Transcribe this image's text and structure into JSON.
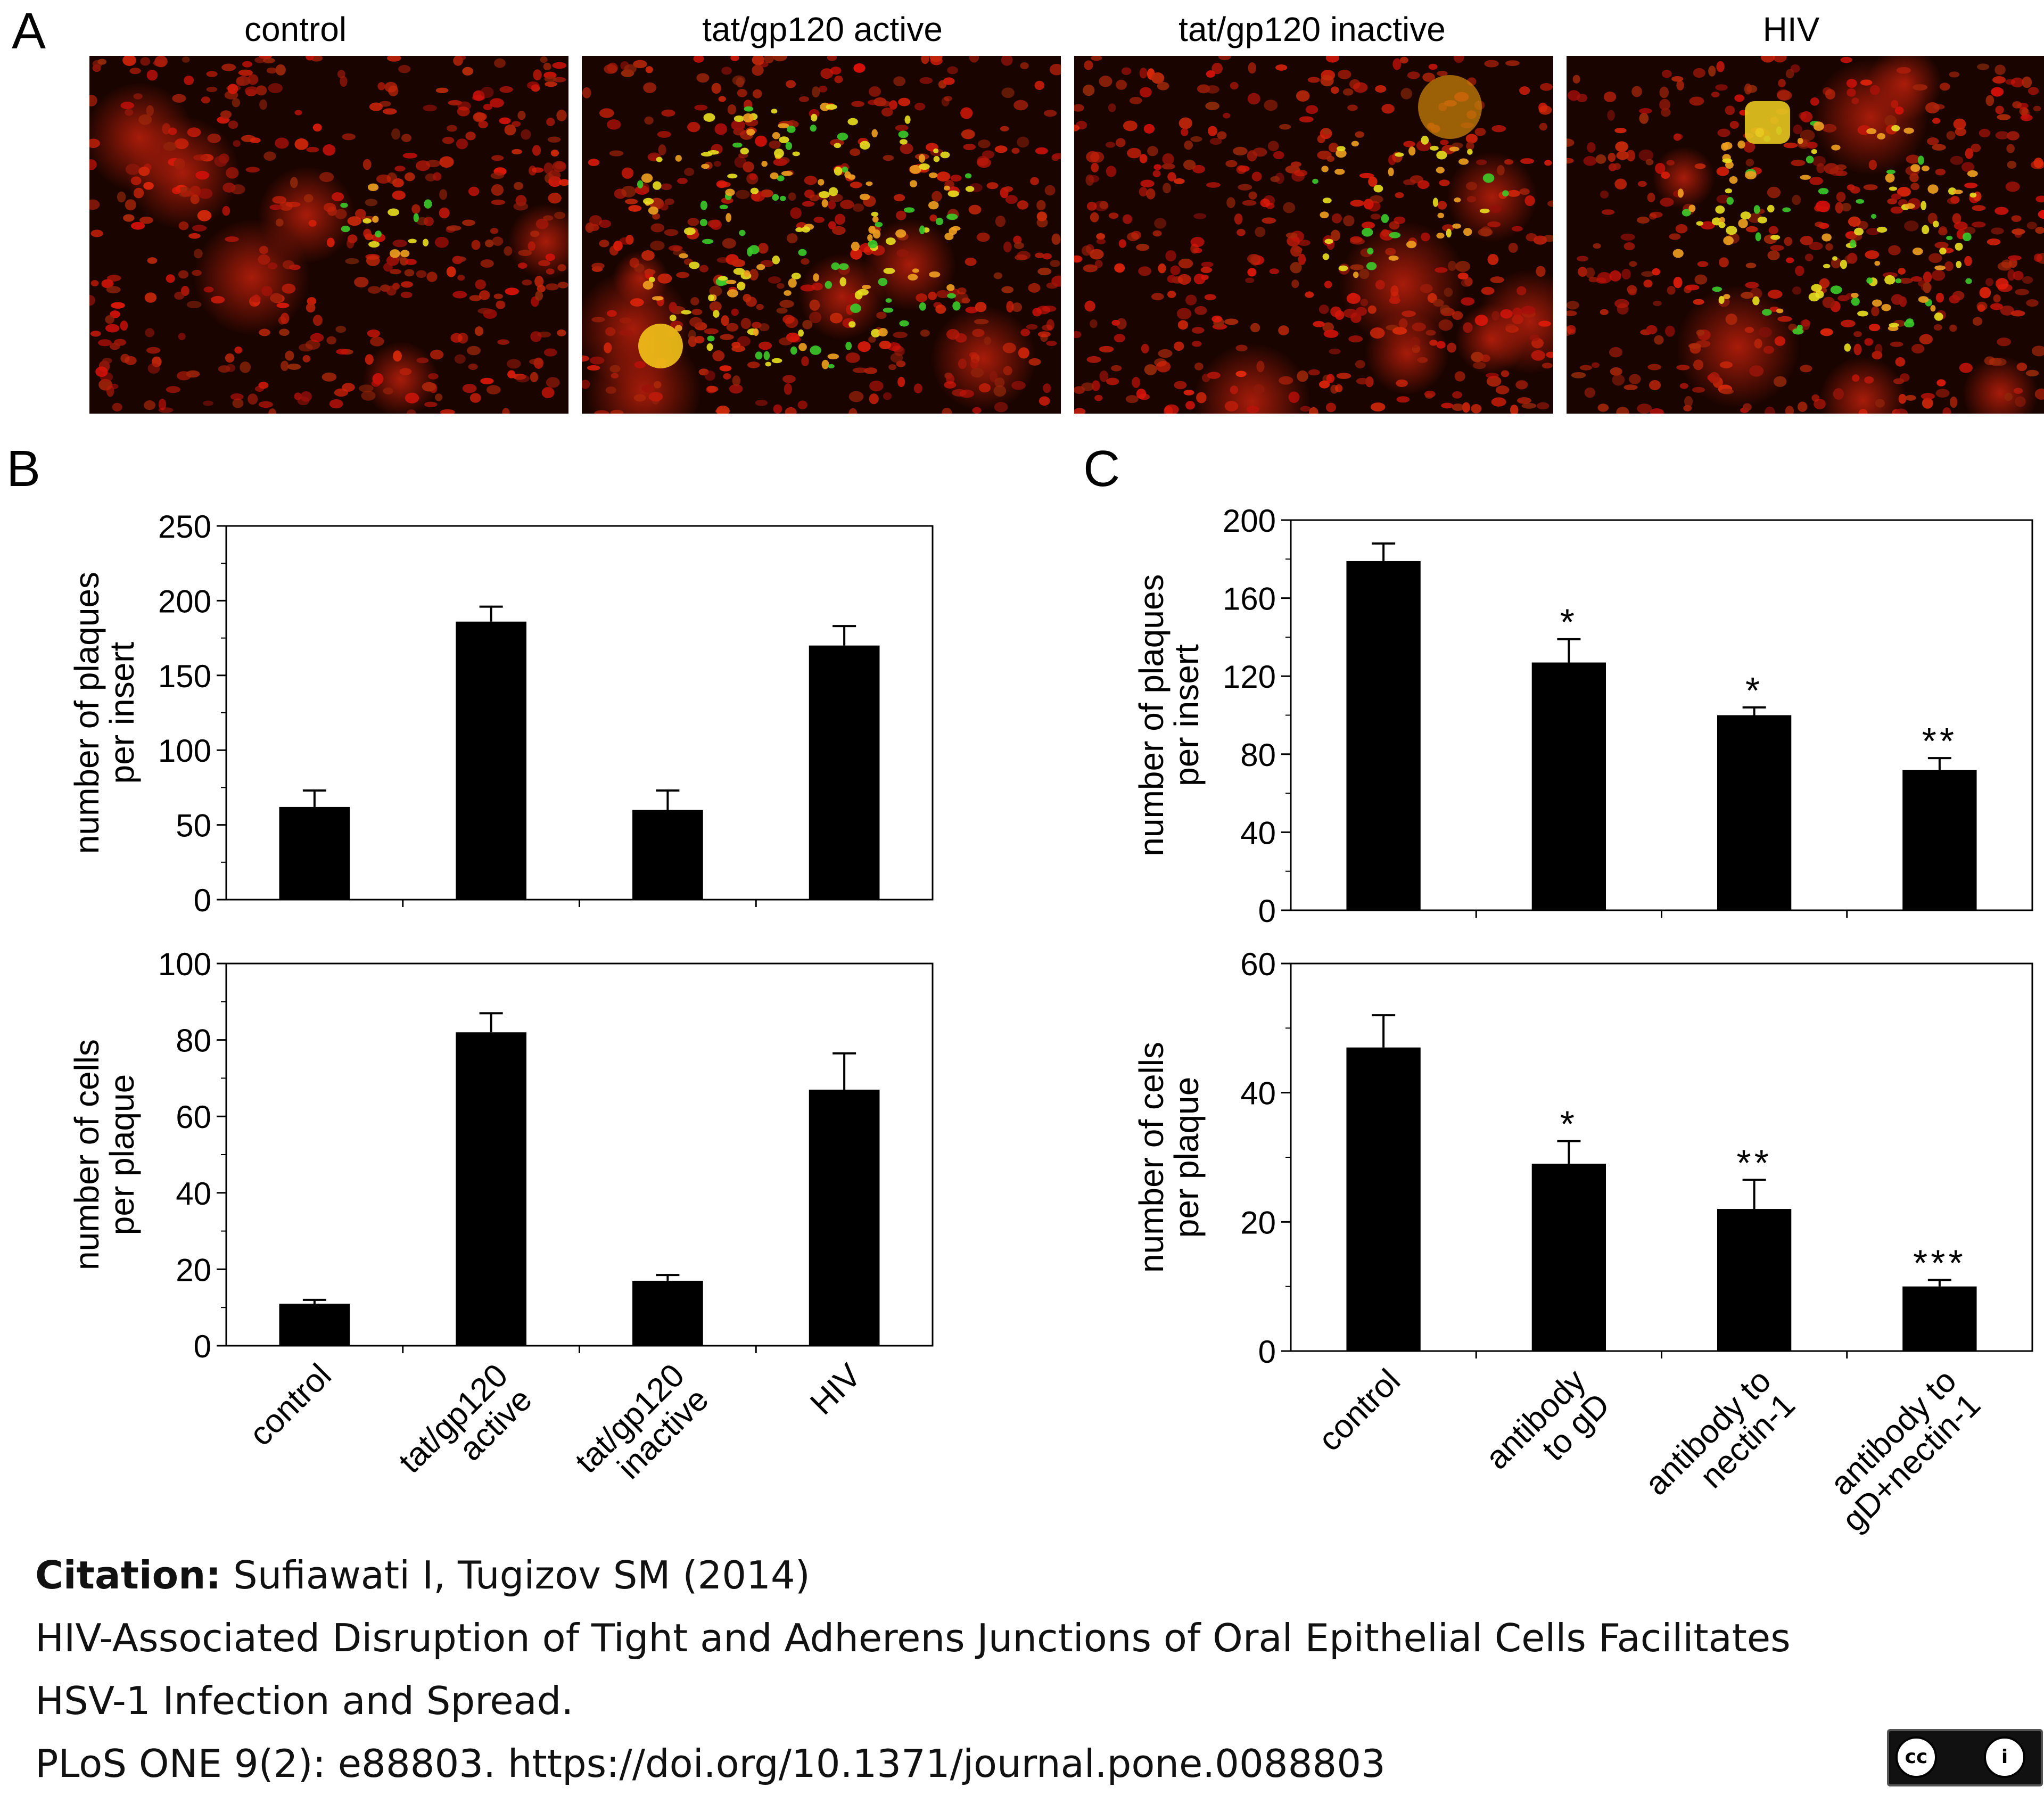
{
  "panel_a": {
    "letter": "A",
    "images": [
      {
        "title": "control"
      },
      {
        "title": "tat/gp120 active"
      },
      {
        "title": "tat/gp120 inactive"
      },
      {
        "title": "HIV"
      }
    ]
  },
  "colors": {
    "bars": "#000000",
    "micro_background": "#1a0400",
    "nuclei_red": "#b3180c",
    "infected_yellow": "#e8e020",
    "infected_green": "#3ccb2a"
  },
  "chart_data": [
    {
      "panel": "B",
      "type": "bar",
      "categories": [
        "control",
        "tat/gp120 active",
        "tat/gp120 inactive",
        "HIV"
      ],
      "values": [
        62,
        186,
        60,
        170
      ],
      "errors": [
        11,
        10,
        13,
        13
      ],
      "ylabel": [
        "number of plaques",
        "per insert"
      ],
      "ylim": [
        0,
        250
      ],
      "yticks": [
        0,
        50,
        100,
        150,
        200,
        250
      ],
      "annotations": [
        "",
        "",
        "",
        ""
      ],
      "legend": "none",
      "grid": false
    },
    {
      "panel": "B",
      "type": "bar",
      "categories": [
        "control",
        "tat/gp120 active",
        "tat/gp120 inactive",
        "HIV"
      ],
      "values": [
        11,
        82,
        17,
        67
      ],
      "errors": [
        1,
        5,
        1.5,
        9.5
      ],
      "ylabel": [
        "number of cells",
        "per plaque"
      ],
      "ylim": [
        0,
        100
      ],
      "yticks": [
        0,
        20,
        40,
        60,
        80,
        100
      ],
      "xticklabels": [
        [
          "control"
        ],
        [
          "tat/gp120",
          "active"
        ],
        [
          "tat/gp120",
          "inactive"
        ],
        [
          "HIV"
        ]
      ],
      "annotations": [
        "",
        "",
        "",
        ""
      ],
      "legend": "none",
      "grid": false
    },
    {
      "panel": "C",
      "type": "bar",
      "categories": [
        "control",
        "antibody to gD",
        "antibody to nectin-1",
        "antibody to gD+nectin-1"
      ],
      "values": [
        179,
        127,
        100,
        72
      ],
      "errors": [
        9,
        12,
        4,
        6
      ],
      "ylabel": [
        "number of plaques",
        "per insert"
      ],
      "ylim": [
        0,
        200
      ],
      "yticks": [
        0,
        40,
        80,
        120,
        160,
        200
      ],
      "annotations": [
        "",
        "*",
        "*",
        "**"
      ],
      "legend": "none",
      "grid": false
    },
    {
      "panel": "C",
      "type": "bar",
      "categories": [
        "control",
        "antibody to gD",
        "antibody to nectin-1",
        "antibody to gD+nectin-1"
      ],
      "values": [
        47,
        29,
        22,
        10
      ],
      "errors": [
        5,
        3.5,
        4.5,
        1
      ],
      "ylabel": [
        "number of cells",
        "per plaque"
      ],
      "ylim": [
        0,
        60
      ],
      "yticks": [
        0,
        20,
        40,
        60
      ],
      "xticklabels": [
        [
          "control"
        ],
        [
          "antibody",
          "to gD"
        ],
        [
          "antibody to",
          "nectin-1"
        ],
        [
          "antibody to",
          "gD+nectin-1"
        ]
      ],
      "annotations": [
        "",
        "*",
        "**",
        "***"
      ],
      "legend": "none",
      "grid": false
    }
  ],
  "panel_letters": {
    "b": "B",
    "c": "C"
  },
  "citation": {
    "label": "Citation:",
    "authors": " Sufiawati I, Tugizov SM (2014)",
    "title_line1": "HIV-Associated Disruption of Tight and Adherens Junctions of Oral Epithelial Cells Facilitates",
    "title_line2": "HSV-1 Infection and Spread.",
    "journal": "PLoS ONE 9(2): e88803. https://doi.org/10.1371/journal.pone.0088803"
  },
  "license_badge": {
    "icon": "cc-by-icon",
    "cc_text": "cc",
    "by_text": "i"
  }
}
